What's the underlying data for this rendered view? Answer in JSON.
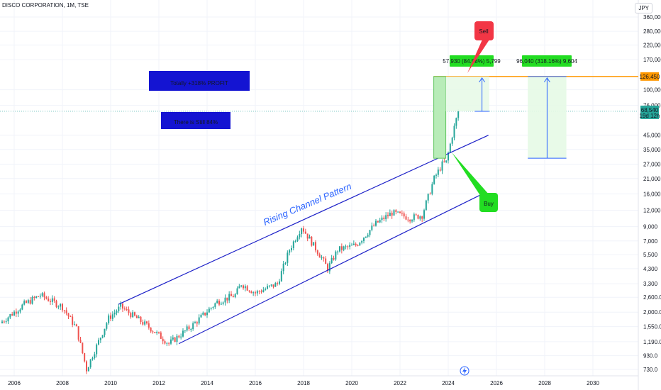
{
  "header": {
    "symbol_line": "DISCO CORPORATION, 1M, TSE",
    "currency": "JPY"
  },
  "annotations": {
    "total_profit": "Totally +318% PROFIT",
    "still": "There is Still 84%",
    "channel": "Rising Channel Pattern",
    "sell": "Sell",
    "buy": "Buy",
    "measure_short": "57,930 (84.58%) 5,799",
    "measure_long": "96,040 (318.16%) 9,604"
  },
  "price_labels": {
    "target": "126,450",
    "last": "68,540",
    "countdown": "19d 12h"
  },
  "colors": {
    "bg": "#ffffff",
    "grid": "#f0f3fa",
    "up": "#26a69a",
    "down": "#ef5350",
    "channel": "#1e22c8",
    "target_line": "#ff9800",
    "current_line": "#26a69a",
    "profit_box": "#c9efc9",
    "blue_box": "#1414d2",
    "sell": "#f23645",
    "buy": "#22dd22"
  },
  "chart_data": {
    "type": "candlestick",
    "title": "DISCO CORPORATION, 1M, TSE",
    "y_scale": "log",
    "x_ticks": [
      "2006",
      "2008",
      "2010",
      "2012",
      "2014",
      "2016",
      "2018",
      "2020",
      "2022",
      "2024",
      "2026",
      "2028",
      "2030"
    ],
    "y_ticks": [
      "730.0",
      "930.0",
      "1,190.0",
      "1,550.0",
      "2,000.0",
      "2,600.0",
      "3,300",
      "4,300",
      "5,500",
      "7,000",
      "9,000",
      "12,000",
      "16,000",
      "21,000",
      "27,000",
      "35,000",
      "45,000",
      "76,000",
      "100,000",
      "170,000",
      "220,000",
      "280,000",
      "360,000"
    ],
    "price_path": [
      [
        "2005-06",
        1650
      ],
      [
        "2006-06",
        2300
      ],
      [
        "2007-02",
        2700
      ],
      [
        "2008-01",
        2200
      ],
      [
        "2008-08",
        1500
      ],
      [
        "2009-01",
        730
      ],
      [
        "2009-12",
        1800
      ],
      [
        "2010-06",
        2200
      ],
      [
        "2011-09",
        1500
      ],
      [
        "2012-06",
        1150
      ],
      [
        "2013-06",
        1600
      ],
      [
        "2014-06",
        2400
      ],
      [
        "2015-03",
        2700
      ],
      [
        "2015-06",
        3300
      ],
      [
        "2016-01",
        2800
      ],
      [
        "2016-12",
        3300
      ],
      [
        "2017-06",
        6000
      ],
      [
        "2017-12",
        9000
      ],
      [
        "2018-10",
        5200
      ],
      [
        "2019-01",
        4300
      ],
      [
        "2019-06",
        6000
      ],
      [
        "2020-03",
        6500
      ],
      [
        "2021-01",
        9500
      ],
      [
        "2021-09",
        11500
      ],
      [
        "2022-06",
        10500
      ],
      [
        "2022-12",
        11000
      ],
      [
        "2023-06",
        21000
      ],
      [
        "2023-10",
        27000
      ],
      [
        "2023-12",
        28000
      ],
      [
        "2024-03",
        45000
      ],
      [
        "2024-06",
        68540
      ]
    ],
    "last_price": 68540,
    "target_price": 126450,
    "channel": {
      "upper": [
        [
          "2010-05",
          2300
        ],
        [
          "2025-09",
          45000
        ]
      ],
      "lower": [
        [
          "2012-11",
          1150
        ],
        [
          "2025-06",
          16000
        ]
      ]
    }
  }
}
